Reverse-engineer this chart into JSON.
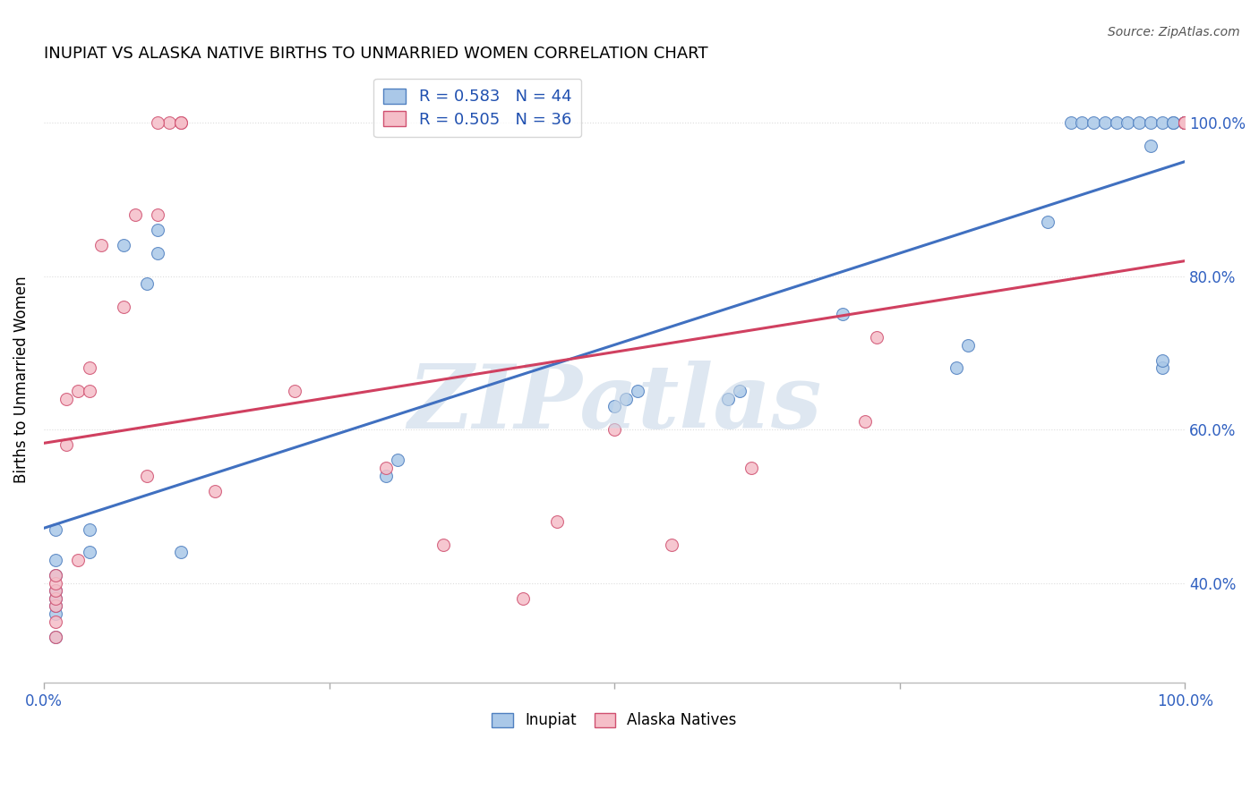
{
  "title": "INUPIAT VS ALASKA NATIVE BIRTHS TO UNMARRIED WOMEN CORRELATION CHART",
  "source": "Source: ZipAtlas.com",
  "ylabel": "Births to Unmarried Women",
  "watermark": "ZIPatlas",
  "blue_R": 0.583,
  "blue_N": 44,
  "pink_R": 0.505,
  "pink_N": 36,
  "blue_label": "Inupiat",
  "pink_label": "Alaska Natives",
  "blue_color": "#aac8e8",
  "pink_color": "#f5bec8",
  "blue_edge_color": "#5080c0",
  "pink_edge_color": "#d05070",
  "blue_line_color": "#4070c0",
  "pink_line_color": "#d04060",
  "legend_text_color": "#2050b0",
  "ytick_color": "#3060c0",
  "xtick_color": "#3060c0",
  "yticks_labels": [
    "40.0%",
    "60.0%",
    "80.0%",
    "100.0%"
  ],
  "ytick_vals": [
    0.4,
    0.6,
    0.8,
    1.0
  ],
  "grid_color": "#dddddd",
  "ymin": 0.27,
  "ymax": 1.06,
  "xmin": 0.0,
  "xmax": 1.0,
  "blue_x": [
    0.01,
    0.01,
    0.01,
    0.01,
    0.01,
    0.01,
    0.01,
    0.01,
    0.04,
    0.04,
    0.07,
    0.09,
    0.1,
    0.1,
    0.12,
    0.3,
    0.31,
    0.5,
    0.51,
    0.52,
    0.6,
    0.61,
    0.7,
    0.8,
    0.81,
    0.88,
    0.9,
    0.91,
    0.92,
    0.93,
    0.94,
    0.95,
    0.96,
    0.97,
    0.97,
    0.98,
    0.98,
    0.98,
    0.99,
    0.99,
    1.0,
    1.0,
    1.0,
    1.0
  ],
  "blue_y": [
    0.33,
    0.36,
    0.37,
    0.38,
    0.39,
    0.41,
    0.43,
    0.47,
    0.44,
    0.47,
    0.84,
    0.79,
    0.83,
    0.86,
    0.44,
    0.54,
    0.56,
    0.63,
    0.64,
    0.65,
    0.64,
    0.65,
    0.75,
    0.68,
    0.71,
    0.87,
    1.0,
    1.0,
    1.0,
    1.0,
    1.0,
    1.0,
    1.0,
    0.97,
    1.0,
    0.68,
    0.69,
    1.0,
    1.0,
    1.0,
    1.0,
    1.0,
    1.0,
    1.0
  ],
  "pink_x": [
    0.01,
    0.01,
    0.01,
    0.01,
    0.01,
    0.01,
    0.01,
    0.02,
    0.02,
    0.03,
    0.03,
    0.04,
    0.04,
    0.05,
    0.07,
    0.08,
    0.09,
    0.1,
    0.11,
    0.12,
    0.12,
    0.15,
    0.3,
    0.35,
    0.5,
    0.62,
    0.72,
    1.0,
    1.0,
    1.0,
    0.42,
    0.55,
    0.73,
    0.22,
    0.45,
    0.1
  ],
  "pink_y": [
    0.33,
    0.35,
    0.37,
    0.38,
    0.39,
    0.4,
    0.41,
    0.58,
    0.64,
    0.43,
    0.65,
    0.65,
    0.68,
    0.84,
    0.76,
    0.88,
    0.54,
    0.88,
    1.0,
    1.0,
    1.0,
    0.52,
    0.55,
    0.45,
    0.6,
    0.55,
    0.61,
    1.0,
    1.0,
    1.0,
    0.38,
    0.45,
    0.72,
    0.65,
    0.48,
    1.0
  ]
}
